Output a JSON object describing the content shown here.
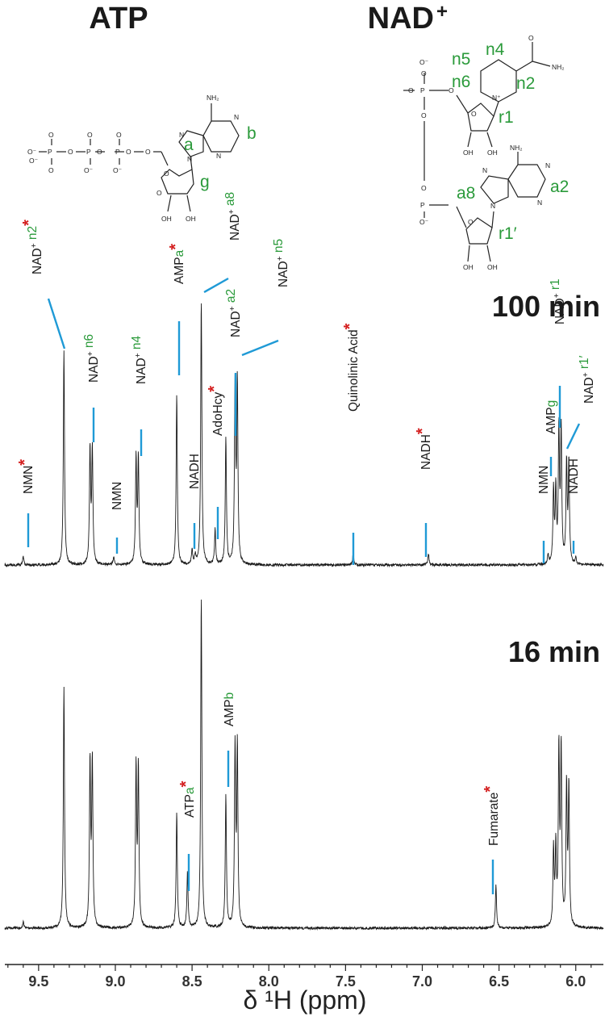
{
  "title_atp": "ATP",
  "title_nad": "NAD",
  "title_nad_sup": "+",
  "structures": {
    "atp": {
      "sites": [
        "a",
        "b",
        "g"
      ],
      "atoms": [
        "O⁻",
        "O",
        "O",
        "O",
        "P",
        "O",
        "O",
        "O⁻",
        "O⁻",
        "P",
        "O",
        "O",
        "O⁻",
        "P",
        "O",
        "O",
        "N",
        "N",
        "N",
        "N",
        "NH₂",
        "OH",
        "OH",
        "O"
      ]
    },
    "nad": {
      "sites": [
        "n2",
        "n4",
        "n5",
        "n6",
        "r1",
        "a2",
        "a8",
        "r1′"
      ],
      "atoms": [
        "O⁻",
        "O",
        "P",
        "O",
        "O",
        "O",
        "P",
        "O",
        "O⁻",
        "N⁺",
        "O",
        "NH₂",
        "O",
        "OH",
        "OH",
        "NH₂",
        "N",
        "N",
        "N",
        "N",
        "O",
        "OH",
        "OH"
      ]
    }
  },
  "chart_data": {
    "type": "line",
    "xlabel": "δ ¹H (ppm)",
    "x_reversed": true,
    "xlim": [
      9.72,
      5.82
    ],
    "x_ticks": [
      "9.5",
      "9.0",
      "8.5",
      "8.0",
      "7.5",
      "7.0",
      "6.5",
      "6.0"
    ],
    "x_tick_values": [
      9.5,
      9.0,
      8.5,
      8.0,
      7.5,
      7.0,
      6.5,
      6.0
    ],
    "colors": {
      "trace": "#1a1a1a",
      "leader": "#1f9ad6",
      "site_label": "#2a9a3a",
      "asterisk": "#d42020"
    },
    "spectra": [
      {
        "time_label": "100 min",
        "peaks": [
          {
            "ppm": 9.6,
            "height": 0.03
          },
          {
            "ppm": 9.335,
            "height": 0.73
          },
          {
            "ppm": 9.165,
            "height": 0.39
          },
          {
            "ppm": 9.15,
            "height": 0.39
          },
          {
            "ppm": 9.01,
            "height": 0.03
          },
          {
            "ppm": 8.865,
            "height": 0.36
          },
          {
            "ppm": 8.85,
            "height": 0.36
          },
          {
            "ppm": 8.6,
            "height": 0.58
          },
          {
            "ppm": 8.5,
            "height": 0.05
          },
          {
            "ppm": 8.48,
            "height": 0.03
          },
          {
            "ppm": 8.44,
            "height": 0.9
          },
          {
            "ppm": 8.35,
            "height": 0.12
          },
          {
            "ppm": 8.28,
            "height": 0.43
          },
          {
            "ppm": 8.22,
            "height": 0.6
          },
          {
            "ppm": 8.205,
            "height": 0.61
          },
          {
            "ppm": 7.45,
            "height": 0.04
          },
          {
            "ppm": 6.96,
            "height": 0.04
          },
          {
            "ppm": 6.18,
            "height": 0.03
          },
          {
            "ppm": 6.145,
            "height": 0.25
          },
          {
            "ppm": 6.13,
            "height": 0.25
          },
          {
            "ppm": 6.11,
            "height": 0.45
          },
          {
            "ppm": 6.095,
            "height": 0.45
          },
          {
            "ppm": 6.06,
            "height": 0.34
          },
          {
            "ppm": 6.045,
            "height": 0.34
          },
          {
            "ppm": 6.0,
            "height": 0.02
          }
        ],
        "annotations": [
          {
            "text": "NMN",
            "site": "",
            "star": true,
            "ppm": 9.6
          },
          {
            "text": "NAD",
            "sup": "+",
            "site": " n2",
            "star": true,
            "ppm": 9.335
          },
          {
            "text": "NAD",
            "sup": "+",
            "site": " n6",
            "star": false,
            "ppm": 9.16
          },
          {
            "text": "NMN",
            "site": "",
            "star": false,
            "ppm": 9.01
          },
          {
            "text": "NAD",
            "sup": "+",
            "site": " n4",
            "star": false,
            "ppm": 8.86
          },
          {
            "text": "AMP",
            "site": "a",
            "star": true,
            "ppm": 8.6
          },
          {
            "text": "NADH",
            "site": "",
            "star": false,
            "ppm": 8.49
          },
          {
            "text": "NAD",
            "sup": "+",
            "site": " a8",
            "star": false,
            "ppm": 8.44
          },
          {
            "text": "AdoHcy",
            "site": "",
            "star": true,
            "ppm": 8.35
          },
          {
            "text": "NAD",
            "sup": "+",
            "site": " a2",
            "star": false,
            "ppm": 8.23
          },
          {
            "text": "NAD",
            "sup": "+",
            "site": " n5",
            "star": false,
            "ppm": 8.2
          },
          {
            "text": "Quinolinic Acid",
            "site": "",
            "star": true,
            "ppm": 7.45
          },
          {
            "text": "NADH",
            "site": "",
            "star": true,
            "ppm": 6.96
          },
          {
            "text": "NMN",
            "site": "",
            "star": false,
            "ppm": 6.18
          },
          {
            "text": "AMP",
            "site": "g",
            "star": false,
            "ppm": 6.14
          },
          {
            "text": "NAD",
            "sup": "+",
            "site": " r1",
            "star": false,
            "ppm": 6.1
          },
          {
            "text": "NAD",
            "sup": "+",
            "site": " r1′",
            "star": false,
            "ppm": 6.05
          },
          {
            "text": "NADH",
            "site": "",
            "star": false,
            "ppm": 6.0
          }
        ]
      },
      {
        "time_label": "16 min",
        "peaks": [
          {
            "ppm": 9.6,
            "height": 0.02
          },
          {
            "ppm": 9.335,
            "height": 0.73
          },
          {
            "ppm": 9.165,
            "height": 0.5
          },
          {
            "ppm": 9.15,
            "height": 0.5
          },
          {
            "ppm": 8.865,
            "height": 0.48
          },
          {
            "ppm": 8.85,
            "height": 0.48
          },
          {
            "ppm": 8.6,
            "height": 0.35
          },
          {
            "ppm": 8.53,
            "height": 0.17
          },
          {
            "ppm": 8.44,
            "height": 1.0
          },
          {
            "ppm": 8.28,
            "height": 0.4
          },
          {
            "ppm": 8.22,
            "height": 0.54
          },
          {
            "ppm": 8.205,
            "height": 0.54
          },
          {
            "ppm": 6.52,
            "height": 0.13
          },
          {
            "ppm": 6.145,
            "height": 0.23
          },
          {
            "ppm": 6.13,
            "height": 0.23
          },
          {
            "ppm": 6.11,
            "height": 0.53
          },
          {
            "ppm": 6.095,
            "height": 0.53
          },
          {
            "ppm": 6.06,
            "height": 0.42
          },
          {
            "ppm": 6.045,
            "height": 0.42
          }
        ],
        "annotations": [
          {
            "text": "ATP",
            "site": "a",
            "star": true,
            "ppm": 8.53
          },
          {
            "text": "AMP",
            "site": "b",
            "star": false,
            "ppm": 8.28
          },
          {
            "text": "Fumarate",
            "site": "",
            "star": true,
            "ppm": 6.52
          }
        ]
      }
    ]
  }
}
